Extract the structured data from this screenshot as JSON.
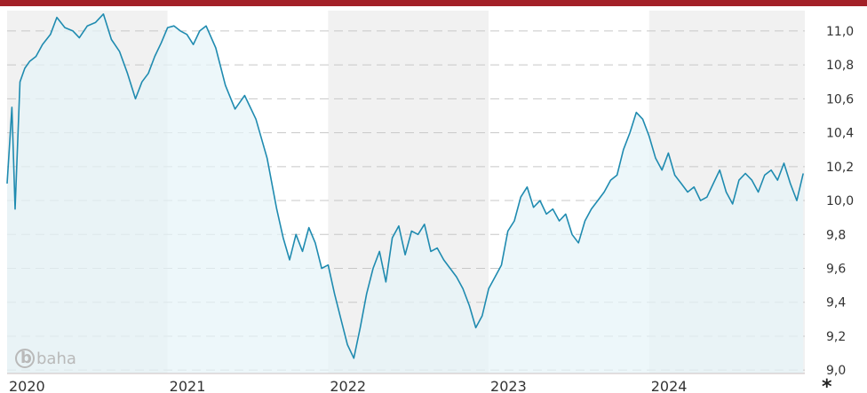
{
  "chart_data": {
    "type": "line",
    "title": "",
    "xlabel": "",
    "ylabel": "",
    "x_ticks": [
      "2020",
      "2021",
      "2022",
      "2023",
      "2024"
    ],
    "y_ticks": [
      "9,0",
      "9,2",
      "9,4",
      "9,6",
      "9,8",
      "10,0",
      "10,2",
      "10,4",
      "10,6",
      "10,8",
      "11,0"
    ],
    "ylim": [
      8.98,
      11.12
    ],
    "xlim": [
      2020.0,
      2024.97
    ],
    "grid": true,
    "footnote": "*",
    "watermark": "baha",
    "colors": {
      "line": "#1f8bb0",
      "fill": "#e6f3f8",
      "band": "#f1f1f1",
      "header": "#a32128",
      "axis": "#ccc0c0"
    },
    "series": [
      {
        "x": [
          2020.0,
          2020.03,
          2020.05,
          2020.08,
          2020.11,
          2020.14,
          2020.18,
          2020.22,
          2020.27,
          2020.31,
          2020.36,
          2020.41,
          2020.45,
          2020.5,
          2020.55,
          2020.6,
          2020.65,
          2020.7,
          2020.75,
          2020.8,
          2020.84,
          2020.88,
          2020.92,
          2020.96,
          2021.0,
          2021.04,
          2021.08,
          2021.12,
          2021.16,
          2021.2,
          2021.24,
          2021.3,
          2021.36,
          2021.42,
          2021.48,
          2021.55,
          2021.62,
          2021.68,
          2021.72,
          2021.76,
          2021.8,
          2021.84,
          2021.88,
          2021.92,
          2021.96,
          2022.0,
          2022.04,
          2022.08,
          2022.12,
          2022.16,
          2022.2,
          2022.24,
          2022.28,
          2022.32,
          2022.36,
          2022.4,
          2022.44,
          2022.48,
          2022.52,
          2022.56,
          2022.6,
          2022.64,
          2022.68,
          2022.72,
          2022.76,
          2022.8,
          2022.84,
          2022.88,
          2022.92,
          2022.96,
          2023.0,
          2023.04,
          2023.08,
          2023.12,
          2023.16,
          2023.2,
          2023.24,
          2023.28,
          2023.32,
          2023.36,
          2023.4,
          2023.44,
          2023.48,
          2023.52,
          2023.56,
          2023.6,
          2023.64,
          2023.68,
          2023.72,
          2023.76,
          2023.8,
          2023.84,
          2023.88,
          2023.92,
          2023.96,
          2024.0,
          2024.04,
          2024.08,
          2024.12,
          2024.16,
          2024.2,
          2024.24,
          2024.28,
          2024.32,
          2024.36,
          2024.4,
          2024.44,
          2024.48,
          2024.52,
          2024.56,
          2024.6,
          2024.64,
          2024.68,
          2024.72,
          2024.76,
          2024.8,
          2024.84,
          2024.88,
          2024.92,
          2024.96
        ],
        "values": [
          10.1,
          10.55,
          9.95,
          10.7,
          10.78,
          10.82,
          10.85,
          10.92,
          10.98,
          11.08,
          11.02,
          11.0,
          10.96,
          11.03,
          11.05,
          11.1,
          10.95,
          10.88,
          10.75,
          10.6,
          10.7,
          10.75,
          10.85,
          10.93,
          11.02,
          11.03,
          11.0,
          10.98,
          10.92,
          11.0,
          11.03,
          10.9,
          10.68,
          10.54,
          10.62,
          10.48,
          10.25,
          9.95,
          9.78,
          9.65,
          9.8,
          9.7,
          9.84,
          9.75,
          9.6,
          9.62,
          9.45,
          9.3,
          9.15,
          9.07,
          9.25,
          9.45,
          9.6,
          9.7,
          9.52,
          9.78,
          9.85,
          9.68,
          9.82,
          9.8,
          9.86,
          9.7,
          9.72,
          9.65,
          9.6,
          9.55,
          9.48,
          9.38,
          9.25,
          9.32,
          9.48,
          9.55,
          9.62,
          9.82,
          9.88,
          10.02,
          10.08,
          9.96,
          10.0,
          9.92,
          9.95,
          9.88,
          9.92,
          9.8,
          9.75,
          9.88,
          9.95,
          10.0,
          10.05,
          10.12,
          10.15,
          10.3,
          10.4,
          10.52,
          10.48,
          10.38,
          10.25,
          10.18,
          10.28,
          10.15,
          10.1,
          10.05,
          10.08,
          10.0,
          10.02,
          10.1,
          10.18,
          10.05,
          9.98,
          10.12,
          10.16,
          10.12,
          10.05,
          10.15,
          10.18,
          10.12,
          10.22,
          10.1,
          10.0,
          10.16
        ]
      }
    ]
  }
}
